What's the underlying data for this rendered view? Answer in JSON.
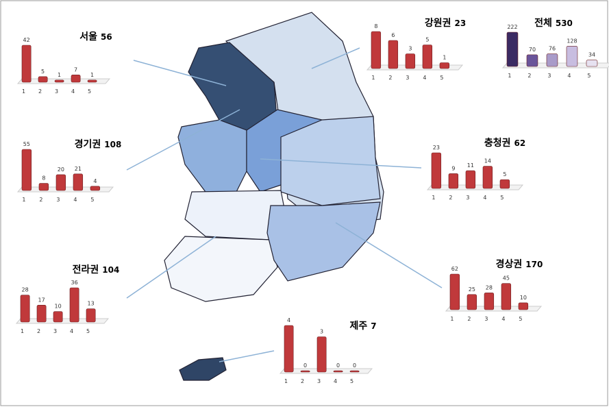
{
  "chart_data": [
    {
      "type": "bar",
      "title": "서울",
      "total": 56,
      "categories": [
        "1",
        "2",
        "3",
        "4",
        "5"
      ],
      "values": [
        42,
        5,
        1,
        7,
        1
      ],
      "color": "#c0393b"
    },
    {
      "type": "bar",
      "title": "강원권",
      "total": 23,
      "categories": [
        "1",
        "2",
        "3",
        "4",
        "5"
      ],
      "values": [
        8,
        6,
        3,
        5,
        1
      ],
      "color": "#c0393b"
    },
    {
      "type": "bar",
      "title": "전체",
      "total": 530,
      "categories": [
        "1",
        "2",
        "3",
        "4",
        "5"
      ],
      "values": [
        222,
        70,
        76,
        128,
        34
      ],
      "colors": [
        "#3b2b63",
        "#6a559a",
        "#a99bc9",
        "#c8bde0",
        "#e6e1f0"
      ]
    },
    {
      "type": "bar",
      "title": "경기권",
      "total": 108,
      "categories": [
        "1",
        "2",
        "3",
        "4",
        "5"
      ],
      "values": [
        55,
        8,
        20,
        21,
        4
      ],
      "color": "#c0393b"
    },
    {
      "type": "bar",
      "title": "충청권",
      "total": 62,
      "categories": [
        "1",
        "2",
        "3",
        "4",
        "5"
      ],
      "values": [
        23,
        9,
        11,
        14,
        5
      ],
      "color": "#c0393b"
    },
    {
      "type": "bar",
      "title": "전라권",
      "total": 104,
      "categories": [
        "1",
        "2",
        "3",
        "4",
        "5"
      ],
      "values": [
        28,
        17,
        10,
        36,
        13
      ],
      "color": "#c0393b"
    },
    {
      "type": "bar",
      "title": "경상권",
      "total": 170,
      "categories": [
        "1",
        "2",
        "3",
        "4",
        "5"
      ],
      "values": [
        62,
        25,
        28,
        45,
        10
      ],
      "color": "#c0393b"
    },
    {
      "type": "bar",
      "title": "제주",
      "total": 7,
      "categories": [
        "1",
        "2",
        "3",
        "4",
        "5"
      ],
      "values": [
        4,
        0,
        3,
        0,
        0
      ],
      "color": "#c0393b"
    }
  ]
}
